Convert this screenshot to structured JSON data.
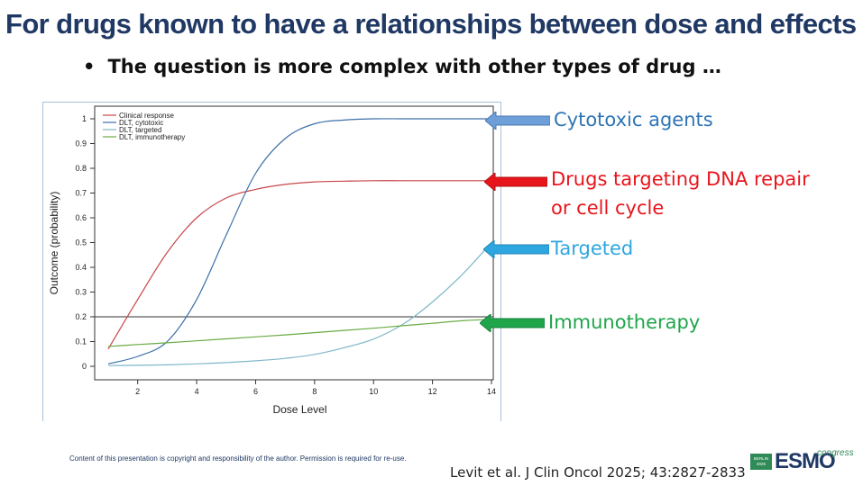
{
  "slide": {
    "title": "For drugs known to have a relationships between dose and effects",
    "bullet": "•",
    "subtitle": "The question is more complex with other types of drug …"
  },
  "annotations": [
    {
      "label": "Cytotoxic agents",
      "color": "#2e75b6",
      "arrow_color": "#6f9fd8"
    },
    {
      "label_line1": "Drugs targeting DNA repair",
      "label_line2": "or cell cycle",
      "color": "#e8141c",
      "arrow_color": "#e8141c"
    },
    {
      "label": "Targeted",
      "color": "#2ea6df",
      "arrow_color": "#2ea6df"
    },
    {
      "label": "Immunotherapy",
      "color": "#1fa54a",
      "arrow_color": "#1fa54a"
    }
  ],
  "footer": {
    "copyright": "Content of this presentation is copyright and responsibility of the author. Permission is required for re-use.",
    "citation": "Levit et al. J Clin Oncol 2025; 43:2827-2833",
    "logo_badge": "BERLIN 2025",
    "logo_word": "ESMO",
    "logo_congress": "congress"
  },
  "chart_data": {
    "type": "line",
    "xlabel": "Dose Level",
    "ylabel": "Outcome (probability)",
    "xlim": [
      1,
      14
    ],
    "ylim": [
      0,
      1
    ],
    "x_ticks": [
      2,
      4,
      6,
      8,
      10,
      12,
      14
    ],
    "y_ticks": [
      0,
      0.1,
      0.2,
      0.3,
      0.4,
      0.5,
      0.6,
      0.7,
      0.8,
      0.9,
      1
    ],
    "y_tick_labels": [
      "0",
      "0.1",
      "0.2",
      "0.3",
      "0.4",
      "0.5",
      "0.6",
      "0.7",
      "0.8",
      "0.9",
      "1"
    ],
    "reference_line": {
      "y": 0.2,
      "color": "#333333"
    },
    "legend_position": "top-left",
    "x": [
      1,
      2,
      3,
      4,
      5,
      6,
      7,
      8,
      9,
      10,
      11,
      12,
      13,
      14
    ],
    "series": [
      {
        "name": "Clinical response",
        "color": "#c8464a",
        "values": [
          0.07,
          0.27,
          0.46,
          0.6,
          0.68,
          0.715,
          0.735,
          0.745,
          0.748,
          0.75,
          0.75,
          0.75,
          0.75,
          0.75
        ]
      },
      {
        "name": "DLT, cytotoxic",
        "color": "#3c6fa8",
        "values": [
          0.01,
          0.04,
          0.1,
          0.27,
          0.53,
          0.78,
          0.92,
          0.98,
          0.995,
          1.0,
          1.0,
          1.0,
          1.0,
          1.0
        ]
      },
      {
        "name": "DLT, targeted",
        "color": "#7fb8c9",
        "values": [
          0.003,
          0.004,
          0.006,
          0.01,
          0.015,
          0.022,
          0.032,
          0.048,
          0.075,
          0.11,
          0.17,
          0.26,
          0.37,
          0.5
        ]
      },
      {
        "name": "DLT, immunotherapy",
        "color": "#6aaa43",
        "values": [
          0.08,
          0.088,
          0.095,
          0.103,
          0.111,
          0.119,
          0.127,
          0.136,
          0.145,
          0.154,
          0.164,
          0.174,
          0.184,
          0.19
        ]
      }
    ]
  }
}
